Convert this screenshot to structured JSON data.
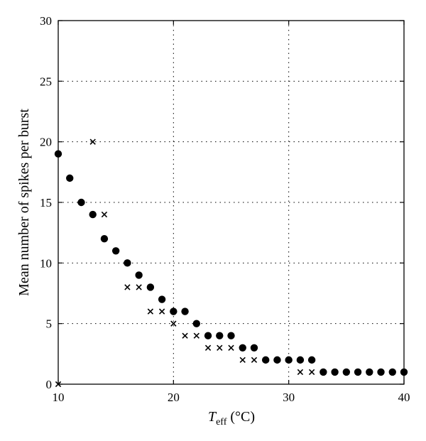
{
  "chart_data": {
    "type": "scatter",
    "xlabel_main": "T",
    "xlabel_sub": "eff",
    "xlabel_unit": " (°C)",
    "ylabel": "Mean number of spikes per burst",
    "xlim": [
      10,
      40
    ],
    "ylim": [
      0,
      30
    ],
    "xticks": [
      10,
      20,
      30,
      40
    ],
    "yticks": [
      0,
      5,
      10,
      15,
      20,
      25,
      30
    ],
    "grid": true,
    "series": [
      {
        "marker": "circle",
        "x": [
          10,
          11,
          12,
          13,
          14,
          15,
          16,
          17,
          18,
          19,
          20,
          21,
          22,
          23,
          24,
          25,
          26,
          27,
          28,
          29,
          30,
          31,
          32,
          33,
          34,
          35,
          36,
          37,
          38,
          39,
          40
        ],
        "y": [
          19,
          17,
          15,
          14,
          12,
          11,
          10,
          9,
          8,
          7,
          6,
          6,
          5,
          4,
          4,
          4,
          3,
          3,
          2,
          2,
          2,
          2,
          2,
          1,
          1,
          1,
          1,
          1,
          1,
          1,
          1
        ]
      },
      {
        "marker": "cross",
        "x": [
          10,
          13,
          14,
          16,
          17,
          18,
          19,
          20,
          21,
          22,
          23,
          24,
          25,
          26,
          27,
          31,
          32
        ],
        "y": [
          0,
          20,
          14,
          8,
          8,
          6,
          6,
          5,
          4,
          4,
          3,
          3,
          3,
          2,
          2,
          1,
          1
        ]
      }
    ]
  }
}
